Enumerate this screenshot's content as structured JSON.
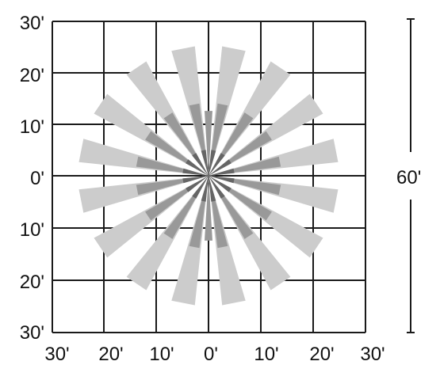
{
  "grid": {
    "y_labels": [
      "30'",
      "20'",
      "10'",
      "0'",
      "10'",
      "20'",
      "30'"
    ],
    "x_labels": [
      "30'",
      "20'",
      "10'",
      "0'",
      "10'",
      "20'",
      "30'"
    ]
  },
  "scale_bar": {
    "label": "60'"
  },
  "colors": {
    "grid": "#1a1a1a",
    "outer_ray": "#cccccc",
    "middle_ray": "#999999",
    "inner_ray": "#666666",
    "scale_bar": "#1a1a1a"
  },
  "rays": {
    "count": 16,
    "step_degrees": 22.5,
    "outer_length_ft": 25,
    "middle_length_ft": 14,
    "inner_length_ft": 5
  }
}
